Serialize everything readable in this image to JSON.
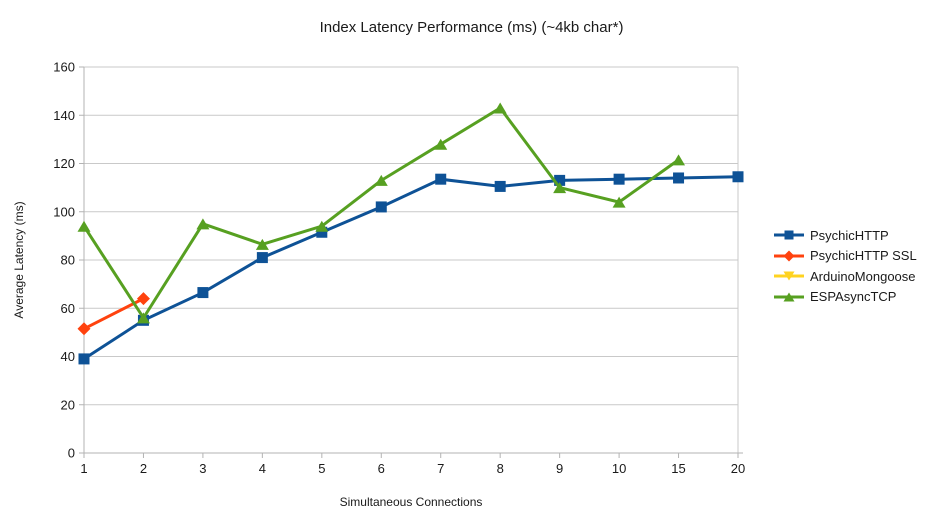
{
  "chart_data": {
    "type": "line",
    "title": "Index Latency Performance (ms) (~4kb char*)",
    "xlabel": "Simultaneous Connections",
    "ylabel": "Average Latency (ms)",
    "ylim": [
      0,
      160
    ],
    "ytick_step": 20,
    "grid": true,
    "legend_position": "right",
    "categories": [
      "1",
      "2",
      "3",
      "4",
      "5",
      "6",
      "7",
      "8",
      "9",
      "10",
      "15",
      "20"
    ],
    "series": [
      {
        "name": "PsychicHTTP",
        "color": "#0E5296",
        "marker": "square",
        "values": [
          39,
          55,
          66.5,
          81,
          91.5,
          102,
          113.5,
          110.5,
          113,
          113.5,
          114,
          114.5
        ]
      },
      {
        "name": "PsychicHTTP SSL",
        "color": "#FF420E",
        "marker": "diamond",
        "values": [
          51.5,
          64,
          null,
          null,
          null,
          null,
          null,
          null,
          null,
          null,
          null,
          null
        ]
      },
      {
        "name": "ArduinoMongoose",
        "color": "#FFD320",
        "marker": "triangle-down",
        "values": [
          null,
          null,
          null,
          null,
          null,
          null,
          null,
          null,
          null,
          null,
          null,
          null
        ]
      },
      {
        "name": "ESPAsyncTCP",
        "color": "#57A021",
        "marker": "triangle-up",
        "values": [
          94,
          56,
          95,
          86.5,
          94,
          113,
          128,
          143,
          110,
          104,
          121.5,
          null
        ]
      }
    ],
    "grid_color": "#C9C9C9",
    "axis_color": "#B3B3B3",
    "text_color": "#1A1A1A"
  }
}
